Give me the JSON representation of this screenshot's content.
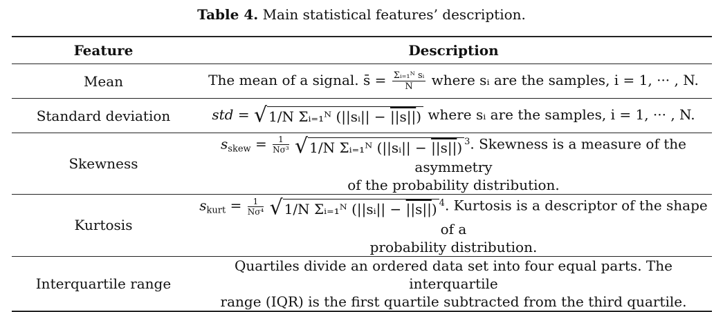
{
  "table": {
    "caption_label": "Table 4.",
    "caption_text": "Main statistical features’ description.",
    "headers": {
      "feature": "Feature",
      "description": "Description"
    },
    "rows": [
      {
        "feature": "Mean",
        "desc_intro": "The mean of a signal.",
        "math_lhs": "s̄ =",
        "math_num": "Σᵢ₌₁ᴺ sᵢ",
        "math_den": "N",
        "desc_tail": "where sᵢ are the samples, i = 1, ··· , N."
      },
      {
        "feature": "Standard deviation",
        "math_lhs": "std =",
        "radical_pre": "1/N Σᵢ₌₁ᴺ (||sᵢ|| − ",
        "radical_bar": "||s||",
        "radical_post": ")",
        "desc_tail": "where sᵢ are the samples, i = 1, ··· , N."
      },
      {
        "feature": "Skewness",
        "math_lhs": "s",
        "math_lhs_sub": "skew",
        "frac_num": "1",
        "frac_den": "Nσ³",
        "radical_pre": "1/N Σᵢ₌₁ᴺ (||sᵢ|| − ",
        "radical_bar": "||s||",
        "radical_post": ")",
        "power": "3",
        "desc_line1": ". Skewness is a measure of the asymmetry",
        "desc_line2": "of the probability distribution."
      },
      {
        "feature": "Kurtosis",
        "math_lhs": "s",
        "math_lhs_sub": "kurt",
        "frac_num": "1",
        "frac_den": "Nσ⁴",
        "radical_pre": "1/N Σᵢ₌₁ᴺ (||sᵢ|| − ",
        "radical_bar": "||s||",
        "radical_post": ")",
        "power": "4",
        "desc_line1": ". Kurtosis is a descriptor of the shape of a",
        "desc_line2": "probability distribution."
      },
      {
        "feature": "Interquartile range",
        "desc_line1": "Quartiles divide an ordered data set into four equal parts. The interquartile",
        "desc_line2": "range (IQR) is the first quartile subtracted from the third quartile."
      }
    ]
  }
}
